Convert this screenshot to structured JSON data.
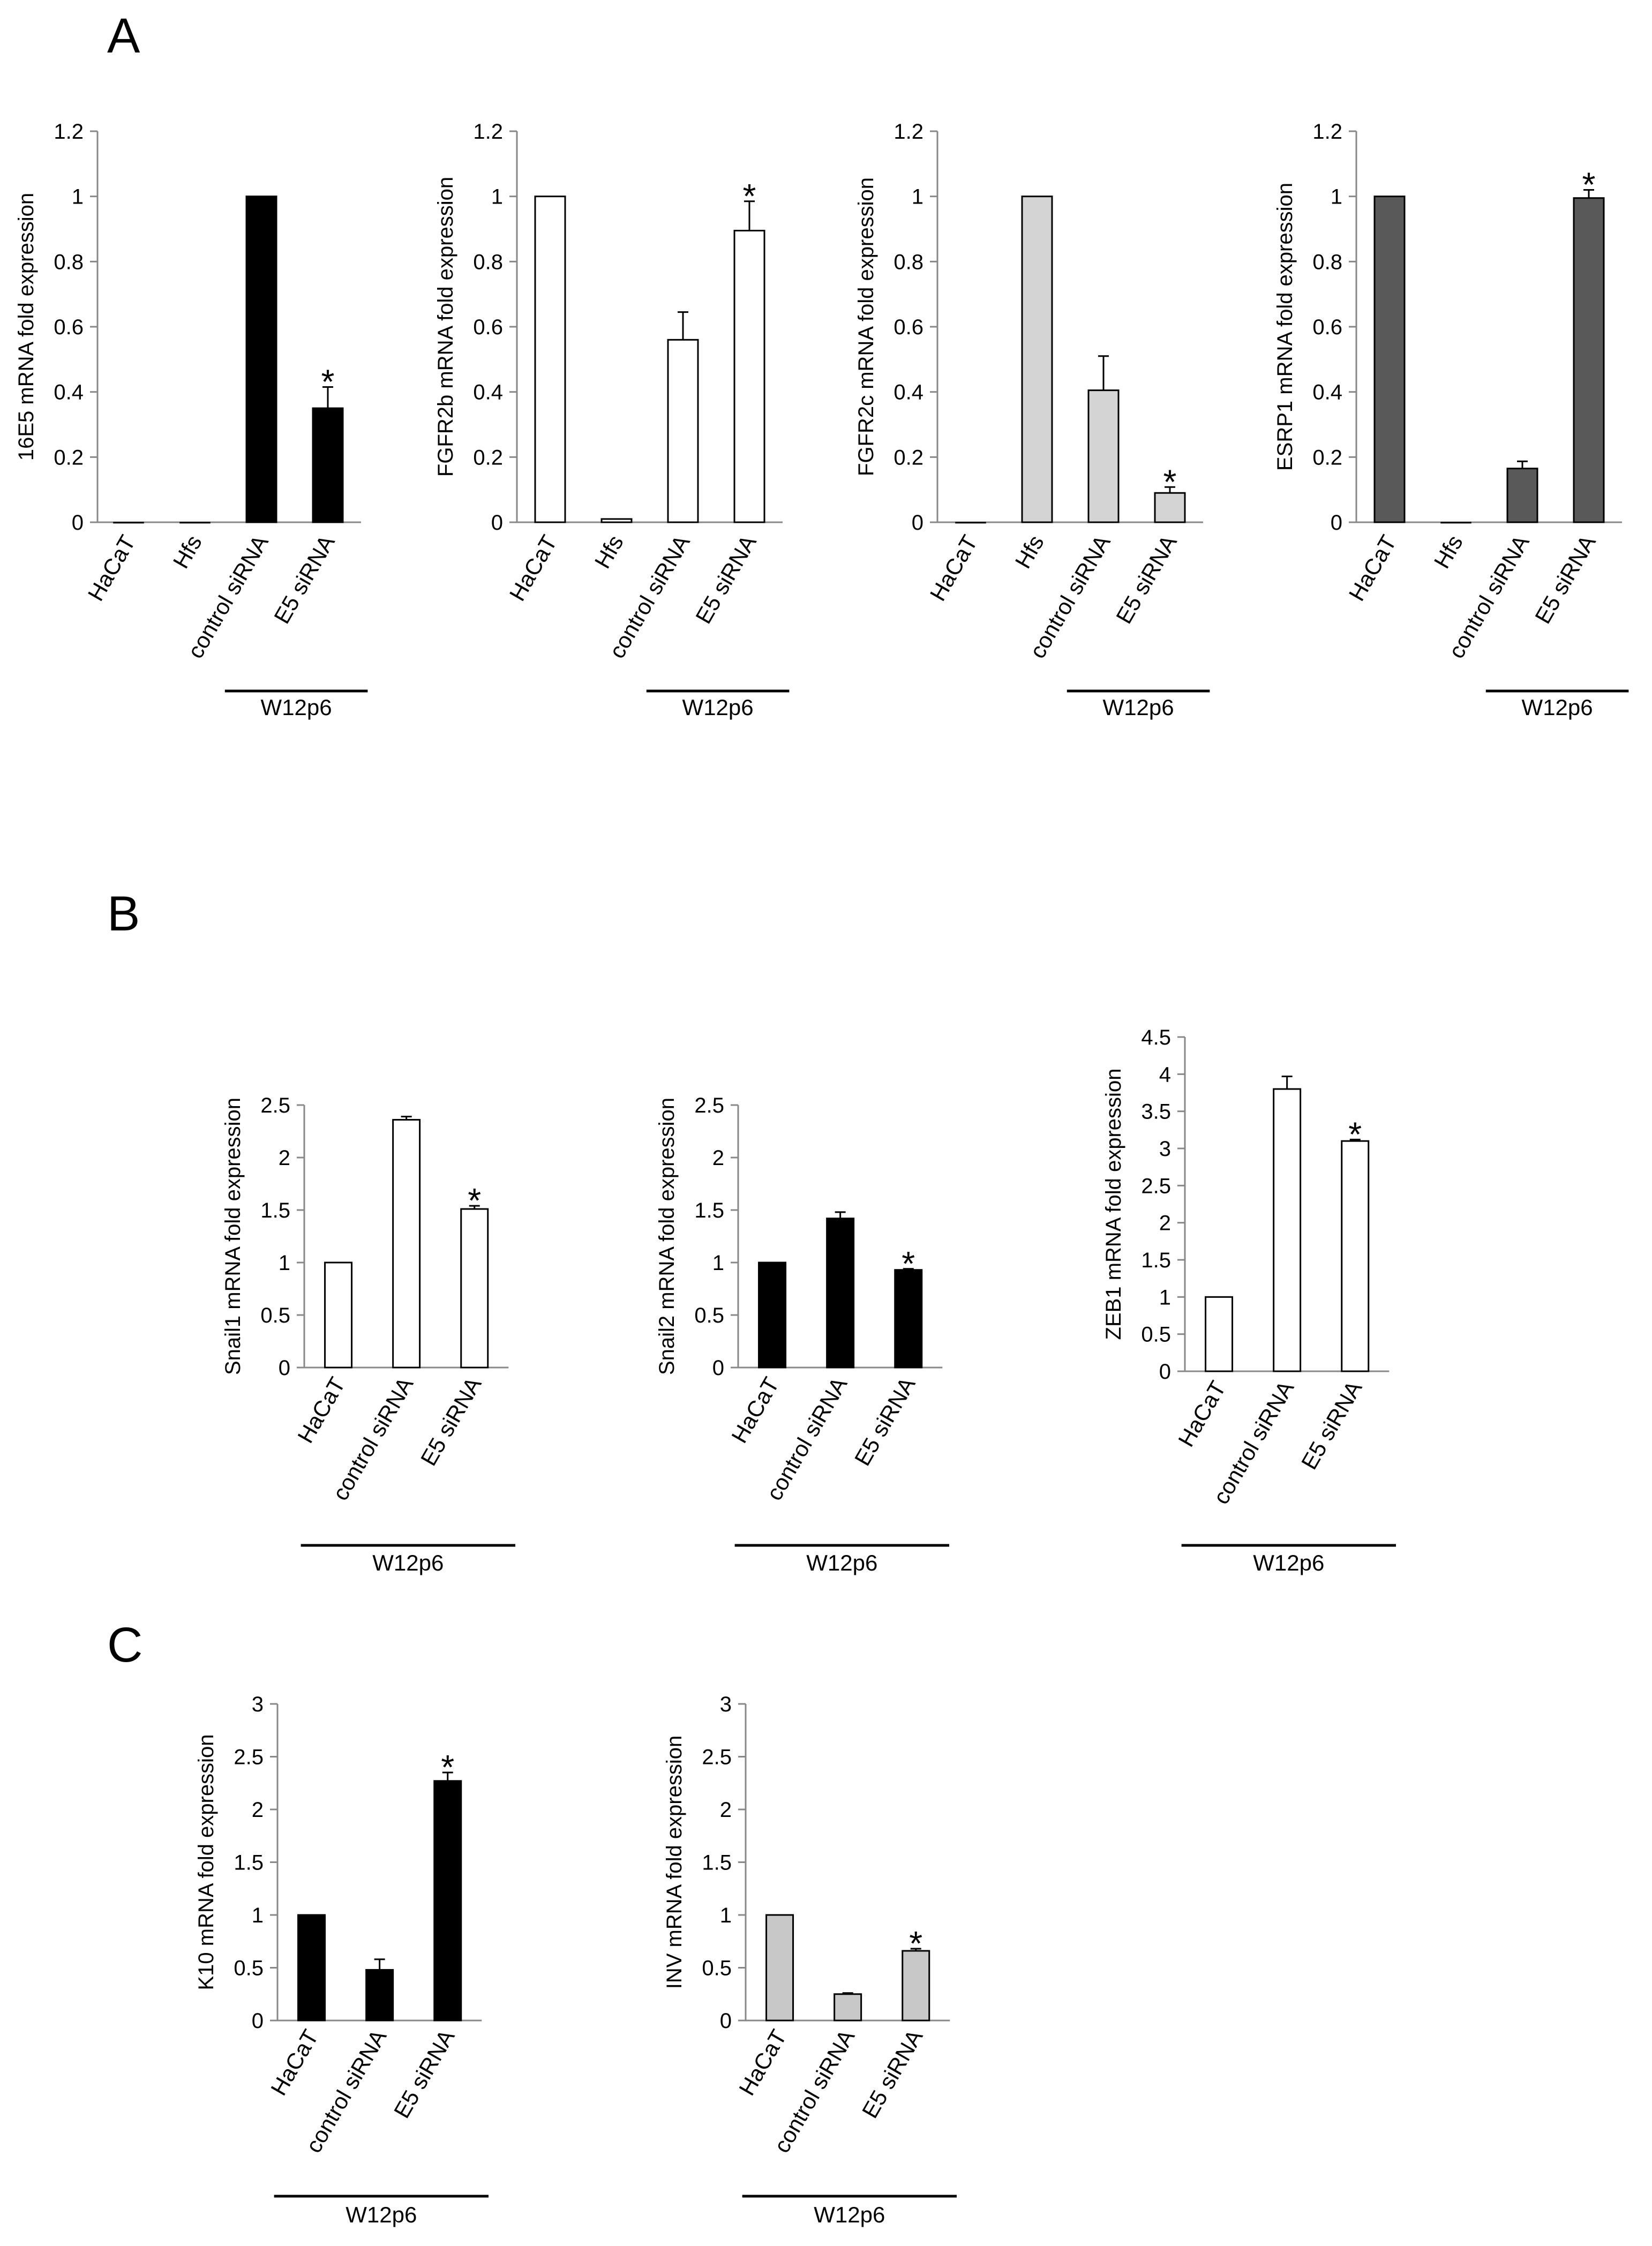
{
  "panels": [
    {
      "letter": "A"
    },
    {
      "letter": "B"
    },
    {
      "letter": "C"
    }
  ],
  "chart_data": [
    {
      "type": "bar",
      "panel": "A",
      "ylabel": "16E5 mRNA fold expression",
      "ylim": [
        0,
        1.2
      ],
      "ytick_labels": [
        "0",
        "0.2",
        "0.4",
        "0.6",
        "0.8",
        "1",
        "1.2"
      ],
      "categories": [
        "HaCaT",
        "Hfs",
        "control siRNA",
        "E5 siRNA"
      ],
      "values": [
        0.0,
        0.0,
        1.0,
        0.35
      ],
      "errors": [
        0,
        0,
        0,
        0.065
      ],
      "significant": [
        "",
        "",
        "",
        "*"
      ],
      "bar_color": "#000000",
      "group_label": "W12p6",
      "group_span": [
        "control siRNA",
        "E5 siRNA"
      ]
    },
    {
      "type": "bar",
      "panel": "A",
      "ylabel": "FGFR2b mRNA fold expression",
      "ylim": [
        0,
        1.2
      ],
      "ytick_labels": [
        "0",
        "0.2",
        "0.4",
        "0.6",
        "0.8",
        "1",
        "1.2"
      ],
      "categories": [
        "HaCaT",
        "Hfs",
        "control siRNA",
        "E5 siRNA"
      ],
      "values": [
        1.0,
        0.01,
        0.56,
        0.895
      ],
      "errors": [
        0,
        0,
        0.085,
        0.09
      ],
      "significant": [
        "",
        "",
        "",
        "*"
      ],
      "bar_color": "#ffffff",
      "group_label": "W12p6",
      "group_span": [
        "control siRNA",
        "E5 siRNA"
      ]
    },
    {
      "type": "bar",
      "panel": "A",
      "ylabel": "FGFR2c mRNA fold expression",
      "ylim": [
        0,
        1.2
      ],
      "ytick_labels": [
        "0",
        "0.2",
        "0.4",
        "0.6",
        "0.8",
        "1",
        "1.2"
      ],
      "categories": [
        "HaCaT",
        "Hfs",
        "control siRNA",
        "E5 siRNA"
      ],
      "values": [
        0.0,
        1.0,
        0.405,
        0.09
      ],
      "errors": [
        0,
        0,
        0.105,
        0.018
      ],
      "significant": [
        "",
        "",
        "",
        "*"
      ],
      "bar_color": "#d4d4d4",
      "group_label": "W12p6",
      "group_span": [
        "control siRNA",
        "E5 siRNA"
      ]
    },
    {
      "type": "bar",
      "panel": "A",
      "ylabel": "ESRP1 mRNA fold expression",
      "ylim": [
        0,
        1.2
      ],
      "ytick_labels": [
        "0",
        "0.2",
        "0.4",
        "0.6",
        "0.8",
        "1",
        "1.2"
      ],
      "categories": [
        "HaCaT",
        "Hfs",
        "control siRNA",
        "E5 siRNA"
      ],
      "values": [
        1.0,
        0.0,
        0.165,
        0.995
      ],
      "errors": [
        0,
        0,
        0.022,
        0.025
      ],
      "significant": [
        "",
        "",
        "",
        "*"
      ],
      "bar_color": "#595959",
      "group_label": "W12p6",
      "group_span": [
        "control siRNA",
        "E5 siRNA"
      ]
    },
    {
      "type": "bar",
      "panel": "B",
      "ylabel": "Snail1 mRNA fold expression",
      "ylim": [
        0,
        2.5
      ],
      "ytick_labels": [
        "0",
        "0.5",
        "1",
        "1.5",
        "2",
        "2.5"
      ],
      "categories": [
        "HaCaT",
        "control siRNA",
        "E5 siRNA"
      ],
      "values": [
        1.0,
        2.36,
        1.51
      ],
      "errors": [
        0,
        0.03,
        0.03
      ],
      "significant": [
        "",
        "",
        "*"
      ],
      "bar_color": "#ffffff",
      "group_label": "W12p6",
      "group_span": [
        "HaCaT",
        "E5 siRNA"
      ]
    },
    {
      "type": "bar",
      "panel": "B",
      "ylabel": "Snail2 mRNA fold expression",
      "ylim": [
        0,
        2.5
      ],
      "ytick_labels": [
        "0",
        "0.5",
        "1",
        "1.5",
        "2",
        "2.5"
      ],
      "categories": [
        "HaCaT",
        "control siRNA",
        "E5 siRNA"
      ],
      "values": [
        1.0,
        1.42,
        0.93
      ],
      "errors": [
        0,
        0.06,
        0.01
      ],
      "significant": [
        "",
        "",
        "*"
      ],
      "bar_color": "#000000",
      "group_label": "W12p6",
      "group_span": [
        "HaCaT",
        "E5 siRNA"
      ]
    },
    {
      "type": "bar",
      "panel": "B",
      "ylabel": "ZEB1 mRNA fold expression",
      "ylim": [
        0,
        4.5
      ],
      "ytick_labels": [
        "0",
        "0.5",
        "1",
        "1.5",
        "2",
        "2.5",
        "3",
        "3.5",
        "4",
        "4.5"
      ],
      "categories": [
        "HaCaT",
        "control siRNA",
        "E5 siRNA"
      ],
      "values": [
        1.0,
        3.8,
        3.1
      ],
      "errors": [
        0,
        0.17,
        0.02
      ],
      "significant": [
        "",
        "",
        "*"
      ],
      "bar_color": "#ffffff",
      "group_label": "W12p6",
      "group_span": [
        "HaCaT",
        "E5 siRNA"
      ]
    },
    {
      "type": "bar",
      "panel": "C",
      "ylabel": "K10 mRNA fold expression",
      "ylim": [
        0,
        3
      ],
      "ytick_labels": [
        "0",
        "0.5",
        "1",
        "1.5",
        "2",
        "2.5",
        "3"
      ],
      "categories": [
        "HaCaT",
        "control siRNA",
        "E5 siRNA"
      ],
      "values": [
        1.0,
        0.48,
        2.27
      ],
      "errors": [
        0,
        0.1,
        0.08
      ],
      "significant": [
        "",
        "",
        "*"
      ],
      "bar_color": "#000000",
      "group_label": "W12p6",
      "group_span": [
        "HaCaT",
        "E5 siRNA"
      ]
    },
    {
      "type": "bar",
      "panel": "C",
      "ylabel": "INV mRNA fold expression",
      "ylim": [
        0,
        3
      ],
      "ytick_labels": [
        "0",
        "0.5",
        "1",
        "1.5",
        "2",
        "2.5",
        "3"
      ],
      "categories": [
        "HaCaT",
        "control siRNA",
        "E5 siRNA"
      ],
      "values": [
        1.0,
        0.25,
        0.66
      ],
      "errors": [
        0,
        0.01,
        0.02
      ],
      "significant": [
        "",
        "",
        "*"
      ],
      "bar_color": "#c8c8c8",
      "group_label": "W12p6",
      "group_span": [
        "HaCaT",
        "E5 siRNA"
      ]
    }
  ]
}
